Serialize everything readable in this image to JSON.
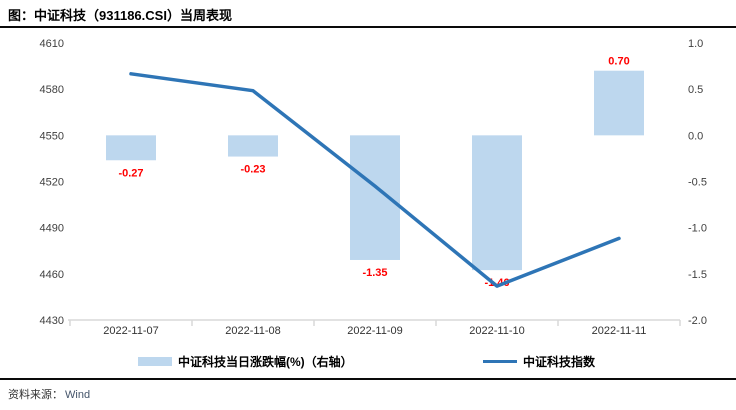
{
  "header": {
    "title": "图：中证科技（931186.CSI）当周表现"
  },
  "chart_data": {
    "type": "combo",
    "title": "图：中证科技（931186.CSI）当周表现",
    "categories": [
      "2022-11-07",
      "2022-11-08",
      "2022-11-09",
      "2022-11-10",
      "2022-11-11"
    ],
    "series": [
      {
        "name": "中证科技当日涨跌幅(%)（右轴）",
        "type": "bar",
        "axis": "right",
        "values": [
          -0.27,
          -0.23,
          -1.35,
          -1.46,
          0.7
        ],
        "labels": [
          "-0.27",
          "-0.23",
          "-1.35",
          "-1.46",
          "0.70"
        ]
      },
      {
        "name": "中证科技指数",
        "type": "line",
        "axis": "left",
        "values": [
          4590,
          4579,
          4517,
          4452,
          4483
        ]
      }
    ],
    "left_axis": {
      "min": 4430,
      "max": 4610,
      "ticks": [
        4610,
        4580,
        4550,
        4520,
        4490,
        4460,
        4430
      ]
    },
    "right_axis": {
      "min": -2.0,
      "max": 1.0,
      "ticks": [
        "1.0",
        "0.5",
        "0.0",
        "-0.5",
        "-1.0",
        "-1.5",
        "-2.0"
      ]
    },
    "grid": false,
    "legend_position": "bottom",
    "colors": {
      "bar_fill": "#BDD7EE",
      "line": "#2E75B6",
      "data_label": "#FF0000",
      "axis_text": "#404040",
      "axis_line": "#D9D9D9"
    }
  },
  "legend": {
    "items": [
      {
        "label": "中证科技当日涨跌幅(%)（右轴）",
        "swatch": "bar"
      },
      {
        "label": "中证科技指数",
        "swatch": "line"
      }
    ]
  },
  "footer": {
    "source_label": "资料来源：",
    "source_value": "Wind"
  }
}
